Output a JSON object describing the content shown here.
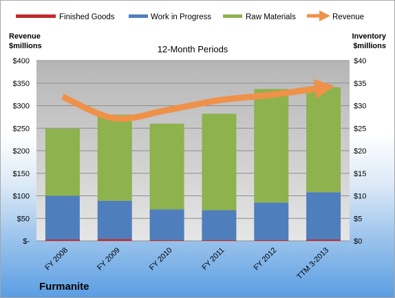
{
  "chart_data": {
    "type": "bar",
    "title": "12-Month Periods",
    "categories": [
      "FY 2008",
      "FY 2009",
      "FY 2010",
      "FY 2011",
      "FY 2012",
      "TTM 3-2013"
    ],
    "series": [
      {
        "name": "Finished Goods",
        "values": [
          0.3,
          0.4,
          0.2,
          0.2,
          0.2,
          0.3
        ],
        "color": "#c0282d",
        "axis": "right",
        "kind": "stacked-bar"
      },
      {
        "name": "Work in Progress",
        "values": [
          9.7,
          8.5,
          6.8,
          6.6,
          8.3,
          10.5
        ],
        "color": "#4f7ebd",
        "axis": "right",
        "kind": "stacked-bar"
      },
      {
        "name": "Raw Materials",
        "values": [
          14.9,
          19.1,
          19.0,
          21.4,
          25.2,
          23.3
        ],
        "color": "#8eb24d",
        "axis": "right",
        "kind": "stacked-bar"
      },
      {
        "name": "Revenue",
        "values": [
          320,
          272,
          290,
          312,
          324,
          340
        ],
        "color": "#f0914a",
        "axis": "left",
        "kind": "line"
      }
    ],
    "left_axis": {
      "label_line1": "Revenue",
      "label_line2": "$millions",
      "ylim": [
        0,
        400
      ],
      "ticks": [
        0,
        50,
        100,
        150,
        200,
        250,
        300,
        350,
        400
      ],
      "tick_labels": [
        "$-",
        "$50",
        "$100",
        "$150",
        "$200",
        "$250",
        "$300",
        "$350",
        "$400"
      ]
    },
    "right_axis": {
      "label_line1": "Inventory",
      "label_line2": "$millions",
      "ylim": [
        0,
        40
      ],
      "ticks": [
        0,
        5,
        10,
        15,
        20,
        25,
        30,
        35,
        40
      ],
      "tick_labels": [
        "$0",
        "$5",
        "$10",
        "$15",
        "$20",
        "$25",
        "$30",
        "$35",
        "$40"
      ]
    },
    "legend_position": "top",
    "grid": true
  },
  "company": "Furmanite"
}
